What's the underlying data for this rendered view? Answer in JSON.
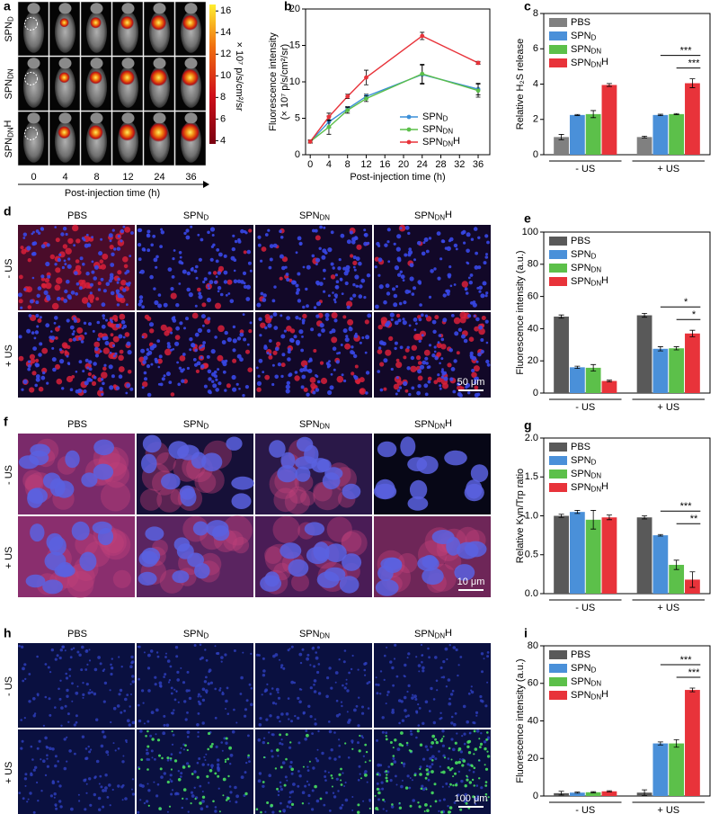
{
  "figure": {
    "panel_labels": [
      "a",
      "b",
      "c",
      "d",
      "e",
      "f",
      "g",
      "h",
      "i"
    ]
  },
  "panel_a": {
    "row_labels": [
      "SPND",
      "SPNDN",
      "SPNDNH"
    ],
    "column_labels": [
      "0",
      "4",
      "8",
      "12",
      "24",
      "36"
    ],
    "xlabel": "Post-injection time (h)",
    "colorbar": {
      "label": "× 10⁷ p/s/cm²/sr",
      "lim": [
        3.7,
        16.6
      ],
      "ticks": [
        4,
        6,
        8,
        10,
        12,
        14,
        16
      ]
    }
  },
  "panel_d": {
    "column_labels": [
      "PBS",
      "SPND",
      "SPNDN",
      "SPNDNH"
    ],
    "row_labels": [
      "- US",
      "+ US"
    ],
    "scale_bar": "50 μm"
  },
  "panel_f": {
    "column_labels": [
      "PBS",
      "SPND",
      "SPNDN",
      "SPNDNH"
    ],
    "row_labels": [
      "- US",
      "+ US"
    ],
    "scale_bar": "10 μm"
  },
  "panel_h": {
    "column_labels": [
      "PBS",
      "SPND",
      "SPNDN",
      "SPNDNH"
    ],
    "row_labels": [
      "- US",
      "+ US"
    ],
    "scale_bar": "100 μm"
  },
  "chart_data": [
    {
      "type": "line",
      "xlabel": "Post-injection time (h)",
      "ylabel": "Fluorescence intensity",
      "ylabel_unit": "(× 10⁷ p/s/cm²/sr)",
      "x": [
        0,
        4,
        8,
        12,
        24,
        36
      ],
      "xlim": [
        -1,
        38.5
      ],
      "xticks": [
        0,
        4,
        8,
        12,
        16,
        20,
        24,
        28,
        32,
        36
      ],
      "ylim": [
        0,
        20
      ],
      "yticks": [
        0,
        5,
        10,
        15,
        20
      ],
      "series": [
        {
          "name": "SPND",
          "color": "#3a8fd8",
          "values": [
            1.8,
            4.5,
            6.3,
            8.0,
            11.0,
            9.0
          ],
          "errors": [
            0.2,
            0.8,
            0.3,
            0.3,
            1.3,
            0.8
          ]
        },
        {
          "name": "SPNDN",
          "color": "#5cbf4a",
          "values": [
            1.8,
            3.8,
            6.1,
            7.7,
            11.1,
            8.8
          ],
          "errors": [
            0.2,
            1.0,
            0.4,
            0.4,
            1.3,
            0.9
          ]
        },
        {
          "name": "SPNDNH",
          "color": "#e8333a",
          "values": [
            1.8,
            5.2,
            8.0,
            10.6,
            16.3,
            12.6
          ],
          "errors": [
            0.2,
            0.5,
            0.3,
            1.0,
            0.5,
            0.2
          ]
        }
      ]
    },
    {
      "type": "bar",
      "ylabel": "Relative H₂S release",
      "categories": [
        "- US",
        "+ US"
      ],
      "ylim": [
        0,
        8
      ],
      "yticks": [
        0,
        2,
        4,
        6,
        8
      ],
      "series": [
        {
          "name": "PBS",
          "color": "#808080",
          "values": [
            1.0,
            1.0
          ],
          "errors": [
            0.15,
            0.05
          ]
        },
        {
          "name": "SPND",
          "color": "#4a90d9",
          "values": [
            2.25,
            2.25
          ],
          "errors": [
            0.03,
            0.04
          ]
        },
        {
          "name": "SPNDN",
          "color": "#5cc04a",
          "values": [
            2.3,
            2.3
          ],
          "errors": [
            0.2,
            0.03
          ]
        },
        {
          "name": "SPNDNH",
          "color": "#e8333a",
          "values": [
            3.95,
            4.05
          ],
          "errors": [
            0.08,
            0.25
          ]
        }
      ],
      "annotations": [
        "***",
        "***"
      ]
    },
    {
      "type": "bar",
      "ylabel": "Fluorescence intensity (a.u.)",
      "categories": [
        "- US",
        "+ US"
      ],
      "ylim": [
        0,
        100
      ],
      "yticks": [
        0,
        20,
        40,
        60,
        80,
        100
      ],
      "series": [
        {
          "name": "PBS",
          "color": "#595959",
          "values": [
            47.5,
            48.3
          ],
          "errors": [
            1.0,
            1.2
          ]
        },
        {
          "name": "SPND",
          "color": "#4a90d9",
          "values": [
            16.0,
            27.5
          ],
          "errors": [
            0.7,
            1.3
          ]
        },
        {
          "name": "SPNDN",
          "color": "#5cc04a",
          "values": [
            15.7,
            27.8
          ],
          "errors": [
            2.0,
            1.0
          ]
        },
        {
          "name": "SPNDNH",
          "color": "#e8333a",
          "values": [
            7.5,
            37.0
          ],
          "errors": [
            0.5,
            2.0
          ]
        }
      ],
      "annotations": [
        "*",
        "*"
      ]
    },
    {
      "type": "bar",
      "ylabel": "Relative Kyn/Trp ratio",
      "categories": [
        "- US",
        "+ US"
      ],
      "ylim": [
        0,
        2.0
      ],
      "yticks": [
        {
          "value": 0,
          "label": "0.0"
        },
        0.5,
        {
          "value": 1,
          "label": "1.0"
        },
        1.5,
        {
          "value": 2,
          "label": "2.0"
        }
      ],
      "series": [
        {
          "name": "PBS",
          "color": "#595959",
          "values": [
            1.0,
            0.98
          ],
          "errors": [
            0.02,
            0.02
          ]
        },
        {
          "name": "SPND",
          "color": "#4a90d9",
          "values": [
            1.05,
            0.75
          ],
          "errors": [
            0.02,
            0.01
          ]
        },
        {
          "name": "SPNDN",
          "color": "#5cc04a",
          "values": [
            0.95,
            0.37
          ],
          "errors": [
            0.12,
            0.06
          ]
        },
        {
          "name": "SPNDNH",
          "color": "#e8333a",
          "values": [
            0.98,
            0.18
          ],
          "errors": [
            0.03,
            0.1
          ]
        }
      ],
      "annotations": [
        "***",
        "**"
      ]
    },
    {
      "type": "bar",
      "ylabel": "Fluorescence intensity (a.u.)",
      "categories": [
        "- US",
        "+ US"
      ],
      "ylim": [
        0,
        80
      ],
      "yticks": [
        0,
        20,
        40,
        60,
        80
      ],
      "series": [
        {
          "name": "PBS",
          "color": "#595959",
          "values": [
            1.5,
            1.8
          ],
          "errors": [
            1.0,
            1.5
          ]
        },
        {
          "name": "SPND",
          "color": "#4a90d9",
          "values": [
            1.8,
            28.0
          ],
          "errors": [
            0.3,
            0.8
          ]
        },
        {
          "name": "SPNDN",
          "color": "#5cc04a",
          "values": [
            2.0,
            28.0
          ],
          "errors": [
            0.3,
            2.0
          ]
        },
        {
          "name": "SPNDNH",
          "color": "#e8333a",
          "values": [
            2.5,
            56.5
          ],
          "errors": [
            0.3,
            1.0
          ]
        }
      ],
      "annotations": [
        "***",
        "***"
      ]
    }
  ]
}
